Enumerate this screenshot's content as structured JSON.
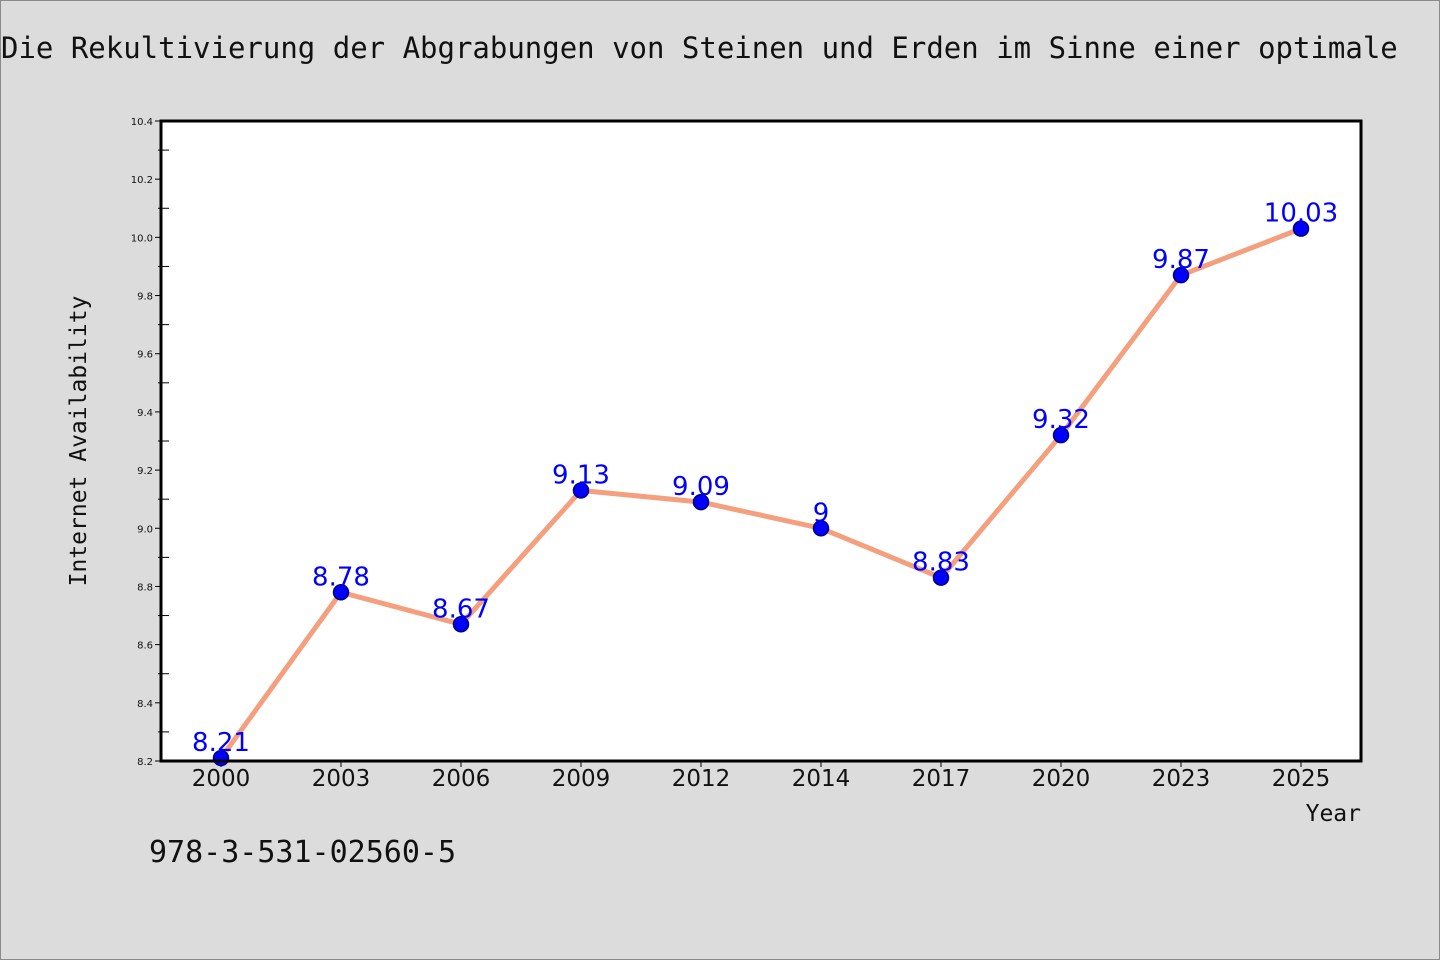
{
  "chart_data": {
    "type": "line",
    "title": "Die Rekultivierung der Abgrabungen von Steinen und Erden im Sinne einer optimale",
    "xlabel": "Year",
    "ylabel": "Internet Availability",
    "categories": [
      "2000",
      "2003",
      "2006",
      "2009",
      "2012",
      "2014",
      "2017",
      "2020",
      "2023",
      "2025"
    ],
    "series": [
      {
        "values": [
          8.21,
          8.78,
          8.67,
          9.13,
          9.09,
          9.0,
          8.83,
          9.32,
          9.87,
          10.03
        ],
        "labels": [
          "8.21",
          "8.78",
          "8.67",
          "9.13",
          "9.09",
          "9",
          "8.83",
          "9.32",
          "9.87",
          "10.03"
        ]
      }
    ],
    "ylim": [
      8.2,
      10.4
    ],
    "yticks": [
      "8.2",
      "8.4",
      "8.6",
      "8.8",
      "9.0",
      "9.2",
      "9.4",
      "9.6",
      "9.8",
      "10.0",
      "10.2",
      "10.4"
    ],
    "grid": false,
    "legend": "none",
    "colors": {
      "line": "#f4a07e",
      "marker": "#0000ff",
      "marker_edge": "#000080",
      "data_label": "#0000ff",
      "plot_background": "#ffffff",
      "page_background": "#dcdcdc"
    }
  },
  "footer": {
    "isbn": "978-3-531-02560-5"
  }
}
